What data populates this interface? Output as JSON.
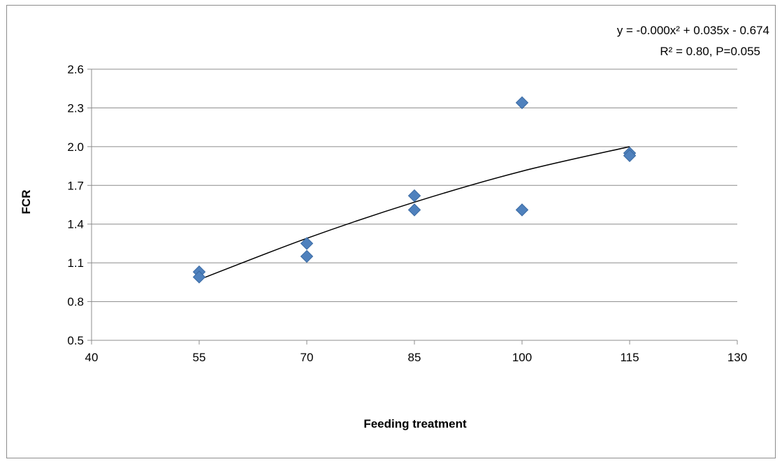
{
  "chart_data": {
    "type": "scatter",
    "title": "",
    "xlabel": "Feeding treatment",
    "ylabel": "FCR",
    "xlim": [
      40,
      130
    ],
    "ylim": [
      0.5,
      2.6
    ],
    "x_ticks": [
      40,
      55,
      70,
      85,
      100,
      115,
      130
    ],
    "x_tick_labels": [
      "40",
      "55",
      "70",
      "85",
      "100",
      "115",
      "130"
    ],
    "y_ticks": [
      0.5,
      0.8,
      1.1,
      1.4,
      1.7,
      2.0,
      2.3,
      2.6
    ],
    "y_tick_labels": [
      "0.5",
      "0.8",
      "1.1",
      "1.4",
      "1.7",
      "2.0",
      "2.3",
      "2.6"
    ],
    "grid": "horizontal",
    "legend": "none",
    "marker": "diamond",
    "marker_color": "#4f81bd",
    "series": [
      {
        "points": [
          {
            "x": 55,
            "y": 1.03
          },
          {
            "x": 55,
            "y": 0.99
          },
          {
            "x": 70,
            "y": 1.25
          },
          {
            "x": 70,
            "y": 1.15
          },
          {
            "x": 85,
            "y": 1.62
          },
          {
            "x": 85,
            "y": 1.51
          },
          {
            "x": 100,
            "y": 2.34
          },
          {
            "x": 100,
            "y": 1.51
          },
          {
            "x": 115,
            "y": 1.95
          },
          {
            "x": 115,
            "y": 1.93
          }
        ]
      }
    ],
    "trendline": {
      "type": "polynomial",
      "x_range": [
        55,
        115
      ],
      "curve": [
        {
          "x": 55,
          "y": 0.97
        },
        {
          "x": 70,
          "y": 1.29
        },
        {
          "x": 85,
          "y": 1.57
        },
        {
          "x": 100,
          "y": 1.81
        },
        {
          "x": 115,
          "y": 2.0
        }
      ],
      "equation": "y = -0.000x² + 0.035x - 0.674",
      "stats": "R² = 0.80, P=0.055"
    }
  }
}
